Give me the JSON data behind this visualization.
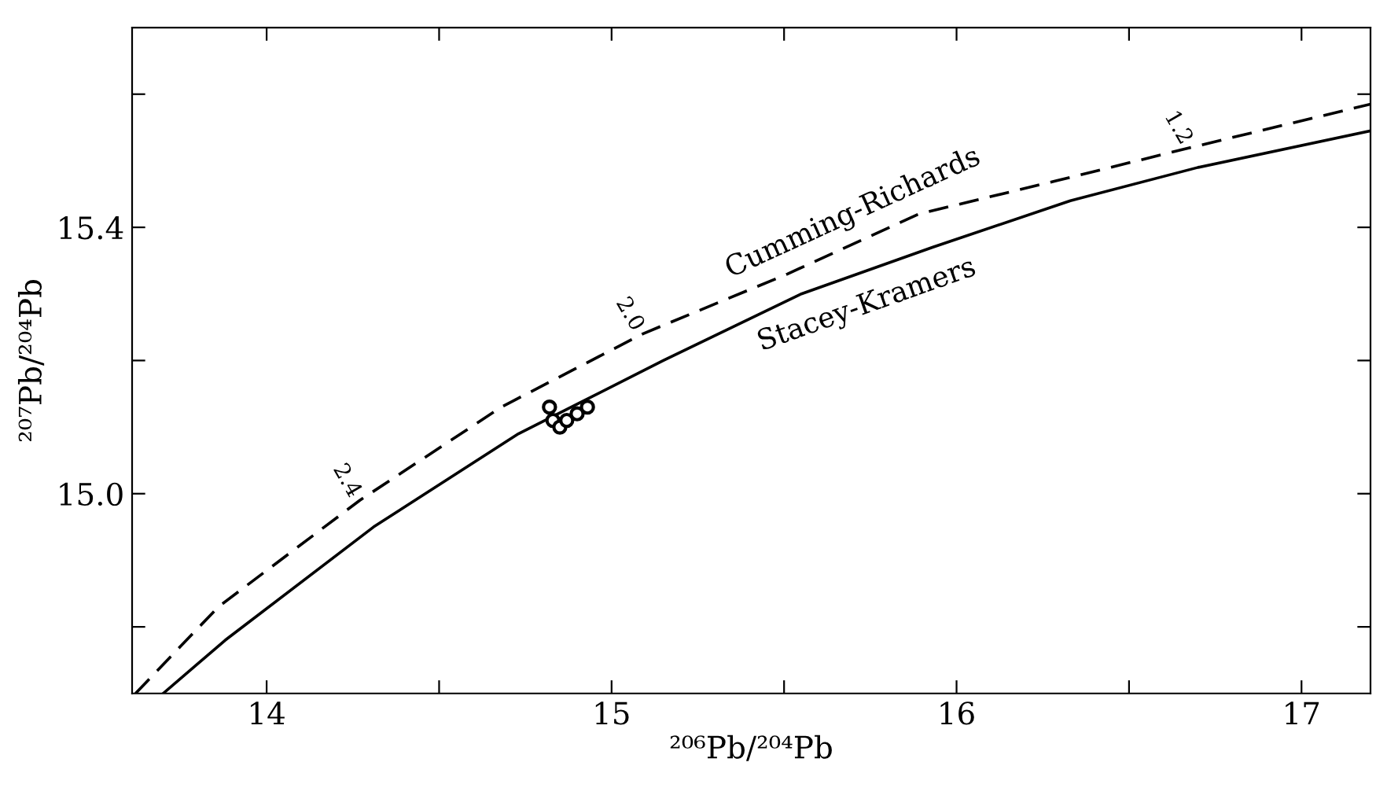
{
  "chart_data": {
    "type": "line",
    "xlabel": "²⁰⁶Pb/²⁰⁴Pb",
    "ylabel": "²⁰⁷Pb/²⁰⁴Pb",
    "xlim": [
      13.61,
      17.2
    ],
    "ylim": [
      14.7,
      15.7
    ],
    "xticks": [
      14,
      {
        "value": 14.5,
        "label": null
      },
      15,
      {
        "value": 15.5,
        "label": null
      },
      16,
      {
        "value": 16.5,
        "label": null
      },
      17
    ],
    "yticks": [
      {
        "value": 14.8,
        "label": null
      },
      {
        "value": 15.0,
        "label": "15.0"
      },
      {
        "value": 15.2,
        "label": null
      },
      15.4,
      {
        "value": 15.6,
        "label": null
      }
    ],
    "grid": false,
    "legend": false,
    "series": [
      {
        "name": "Cumming-Richards",
        "color": "#000000",
        "line_style": "dashed",
        "marker": "none",
        "x": [
          13.62,
          13.86,
          14.27,
          14.68,
          15.09,
          15.51,
          15.89,
          16.29,
          16.68,
          17.2
        ],
        "values": [
          14.7,
          14.83,
          14.99,
          15.13,
          15.24,
          15.33,
          15.42,
          15.47,
          15.52,
          15.585
        ]
      },
      {
        "name": "Stacey-Kramers",
        "color": "#000000",
        "line_style": "solid",
        "marker": "none",
        "x": [
          13.7,
          13.88,
          14.31,
          14.73,
          15.15,
          15.55,
          15.93,
          16.33,
          16.7,
          17.2
        ],
        "values": [
          14.7,
          14.78,
          14.95,
          15.09,
          15.2,
          15.3,
          15.37,
          15.44,
          15.49,
          15.545
        ]
      },
      {
        "type": "scatter",
        "color": "#000000",
        "marker": "circle",
        "x": [
          14.82,
          14.83,
          14.85,
          14.87,
          14.9,
          14.93
        ],
        "values": [
          15.13,
          15.11,
          15.1,
          15.11,
          15.12,
          15.13
        ]
      }
    ],
    "annotations": [
      {
        "text": "2.4",
        "x": 14.27,
        "y": 14.99
      },
      {
        "text": "2.0",
        "x": 15.09,
        "y": 15.24
      },
      {
        "text": "1.2",
        "x": 16.68,
        "y": 15.52
      }
    ]
  }
}
